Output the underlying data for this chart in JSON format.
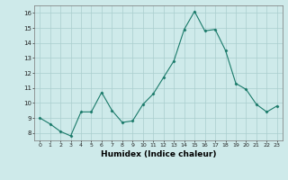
{
  "x": [
    0,
    1,
    2,
    3,
    4,
    5,
    6,
    7,
    8,
    9,
    10,
    11,
    12,
    13,
    14,
    15,
    16,
    17,
    18,
    19,
    20,
    21,
    22,
    23
  ],
  "y": [
    9.0,
    8.6,
    8.1,
    7.8,
    9.4,
    9.4,
    10.7,
    9.5,
    8.7,
    8.8,
    9.9,
    10.6,
    11.7,
    12.8,
    14.9,
    16.1,
    14.8,
    14.9,
    13.5,
    11.3,
    10.9,
    9.9,
    9.4,
    9.8
  ],
  "line_color": "#1a7a6a",
  "marker": "D",
  "marker_size": 1.5,
  "line_width": 0.8,
  "bg_color": "#ceeaea",
  "grid_color": "#aacece",
  "xlabel": "Humidex (Indice chaleur)",
  "xlabel_fontsize": 6.5,
  "ytick_min": 8,
  "ytick_max": 16,
  "xtick_labels": [
    "0",
    "1",
    "2",
    "3",
    "4",
    "5",
    "6",
    "7",
    "8",
    "9",
    "10",
    "11",
    "12",
    "13",
    "14",
    "15",
    "16",
    "17",
    "18",
    "19",
    "20",
    "21",
    "22",
    "23"
  ],
  "ylim": [
    7.5,
    16.5
  ],
  "xlim": [
    -0.5,
    23.5
  ]
}
